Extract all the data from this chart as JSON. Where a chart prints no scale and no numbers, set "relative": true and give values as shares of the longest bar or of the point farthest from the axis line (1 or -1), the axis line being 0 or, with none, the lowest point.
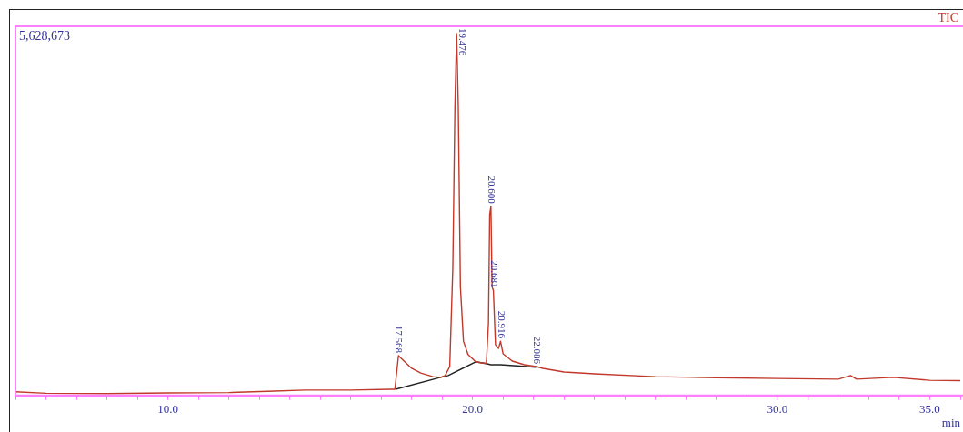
{
  "chart_data": {
    "type": "line",
    "relative": true,
    "xlabel": "min",
    "xlim": [
      5,
      36
    ],
    "xticks": [
      {
        "value": 5,
        "label": null
      },
      {
        "value": 6,
        "label": null
      },
      {
        "value": 7,
        "label": null
      },
      {
        "value": 8,
        "label": null
      },
      {
        "value": 9,
        "label": null
      },
      {
        "value": 10,
        "label": "10.0"
      },
      {
        "value": 11,
        "label": null
      },
      {
        "value": 12,
        "label": null
      },
      {
        "value": 13,
        "label": null
      },
      {
        "value": 14,
        "label": null
      },
      {
        "value": 15,
        "label": null
      },
      {
        "value": 16,
        "label": null
      },
      {
        "value": 17,
        "label": null
      },
      {
        "value": 18,
        "label": null
      },
      {
        "value": 19,
        "label": null
      },
      {
        "value": 20,
        "label": "20.0"
      },
      {
        "value": 21,
        "label": null
      },
      {
        "value": 22,
        "label": null
      },
      {
        "value": 23,
        "label": null
      },
      {
        "value": 24,
        "label": null
      },
      {
        "value": 25,
        "label": null
      },
      {
        "value": 26,
        "label": null
      },
      {
        "value": 27,
        "label": null
      },
      {
        "value": 28,
        "label": null
      },
      {
        "value": 29,
        "label": null
      },
      {
        "value": 30,
        "label": "30.0"
      },
      {
        "value": 31,
        "label": null
      },
      {
        "value": 32,
        "label": null
      },
      {
        "value": 33,
        "label": null
      },
      {
        "value": 34,
        "label": null
      },
      {
        "value": 35,
        "label": "35.0"
      },
      {
        "value": 36,
        "label": null
      }
    ],
    "grid": false,
    "legend": false,
    "marker": "none",
    "line_style": "solid",
    "series": [
      {
        "color": "#c0392b",
        "x": [
          5,
          6,
          8,
          10,
          12,
          13.5,
          14.5,
          16,
          17.3,
          17.45,
          17.568,
          17.75,
          18,
          18.3,
          18.7,
          18.95,
          19.1,
          19.25,
          19.35,
          19.42,
          19.476,
          19.53,
          19.6,
          19.7,
          19.85,
          20.1,
          20.3,
          20.45,
          20.52,
          20.56,
          20.6,
          20.64,
          20.681,
          20.75,
          20.85,
          20.916,
          21,
          21.3,
          21.7,
          22.086,
          22.3,
          23,
          24,
          26,
          28,
          30,
          32,
          32.4,
          32.6,
          33.8,
          35,
          36
        ],
        "values": [
          0.01,
          0.006,
          0.005,
          0.007,
          0.008,
          0.012,
          0.015,
          0.015,
          0.017,
          0.017,
          0.11,
          0.095,
          0.075,
          0.062,
          0.052,
          0.05,
          0.055,
          0.08,
          0.35,
          0.8,
          1,
          0.8,
          0.3,
          0.15,
          0.113,
          0.093,
          0.09,
          0.088,
          0.2,
          0.5,
          0.523,
          0.3,
          0.29,
          0.14,
          0.13,
          0.15,
          0.115,
          0.095,
          0.085,
          0.08,
          0.075,
          0.065,
          0.06,
          0.052,
          0.049,
          0.047,
          0.045,
          0.055,
          0.045,
          0.05,
          0.042,
          0.041
        ]
      },
      {
        "color": "#222222",
        "x": [
          17.47,
          18.95,
          19.2,
          20.1,
          20.45,
          20.6,
          20.92,
          22.086
        ],
        "values": [
          0.017,
          0.05,
          0.055,
          0.093,
          0.088,
          0.085,
          0.085,
          0.078
        ]
      }
    ],
    "annotations": [
      "5,628,673",
      "TIC",
      {
        "text": "17.568",
        "x": 17.568,
        "y": 0.11
      },
      {
        "text": "19.476",
        "x": 19.476,
        "y": 1
      },
      {
        "text": "20.600",
        "x": 20.6,
        "y": 0.523
      },
      {
        "text": "20.681",
        "x": 20.681,
        "y": 0.29
      },
      {
        "text": "20.916",
        "x": 20.916,
        "y": 0.15
      },
      {
        "text": "22.086",
        "x": 22.086,
        "y": 0.08
      }
    ]
  }
}
